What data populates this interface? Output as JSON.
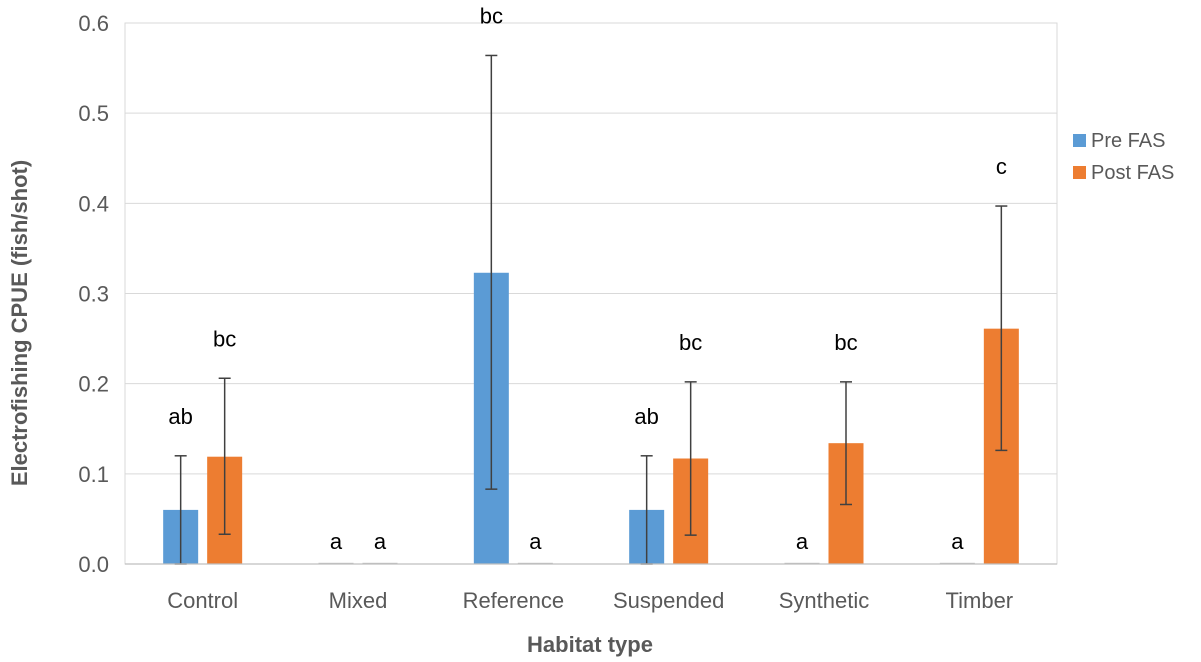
{
  "chart_data": {
    "type": "bar",
    "xlabel": "Habitat type",
    "ylabel": "Electrofishing CPUE (fish/shot)",
    "ylim": [
      0,
      0.6
    ],
    "yticks": [
      "0.0",
      "0.1",
      "0.2",
      "0.3",
      "0.4",
      "0.5",
      "0.6"
    ],
    "ytick_values": [
      0,
      0.1,
      0.2,
      0.3,
      0.4,
      0.5,
      0.6
    ],
    "grid": true,
    "legend_position": "right",
    "categories": [
      "Control",
      "Mixed",
      "Reference",
      "Suspended",
      "Synthetic",
      "Timber"
    ],
    "series": [
      {
        "name": "Pre FAS",
        "color": "#5B9BD5",
        "values": [
          0.06,
          0.0,
          0.323,
          0.06,
          0.0,
          0.0
        ],
        "error_low": [
          0.0,
          0.0,
          0.083,
          0.0,
          0.0,
          0.0
        ],
        "error_high": [
          0.12,
          0.0,
          0.564,
          0.12,
          0.0,
          0.0
        ],
        "significance": [
          "ab",
          "a",
          "bc",
          "ab",
          "a",
          "a"
        ]
      },
      {
        "name": "Post FAS",
        "color": "#ED7D31",
        "values": [
          0.119,
          0.0,
          0.0,
          0.117,
          0.134,
          0.261
        ],
        "error_low": [
          0.033,
          0.0,
          0.0,
          0.032,
          0.066,
          0.126
        ],
        "error_high": [
          0.206,
          0.0,
          0.0,
          0.202,
          0.202,
          0.397
        ],
        "significance": [
          "bc",
          "a",
          "a",
          "bc",
          "bc",
          "c"
        ]
      }
    ]
  }
}
